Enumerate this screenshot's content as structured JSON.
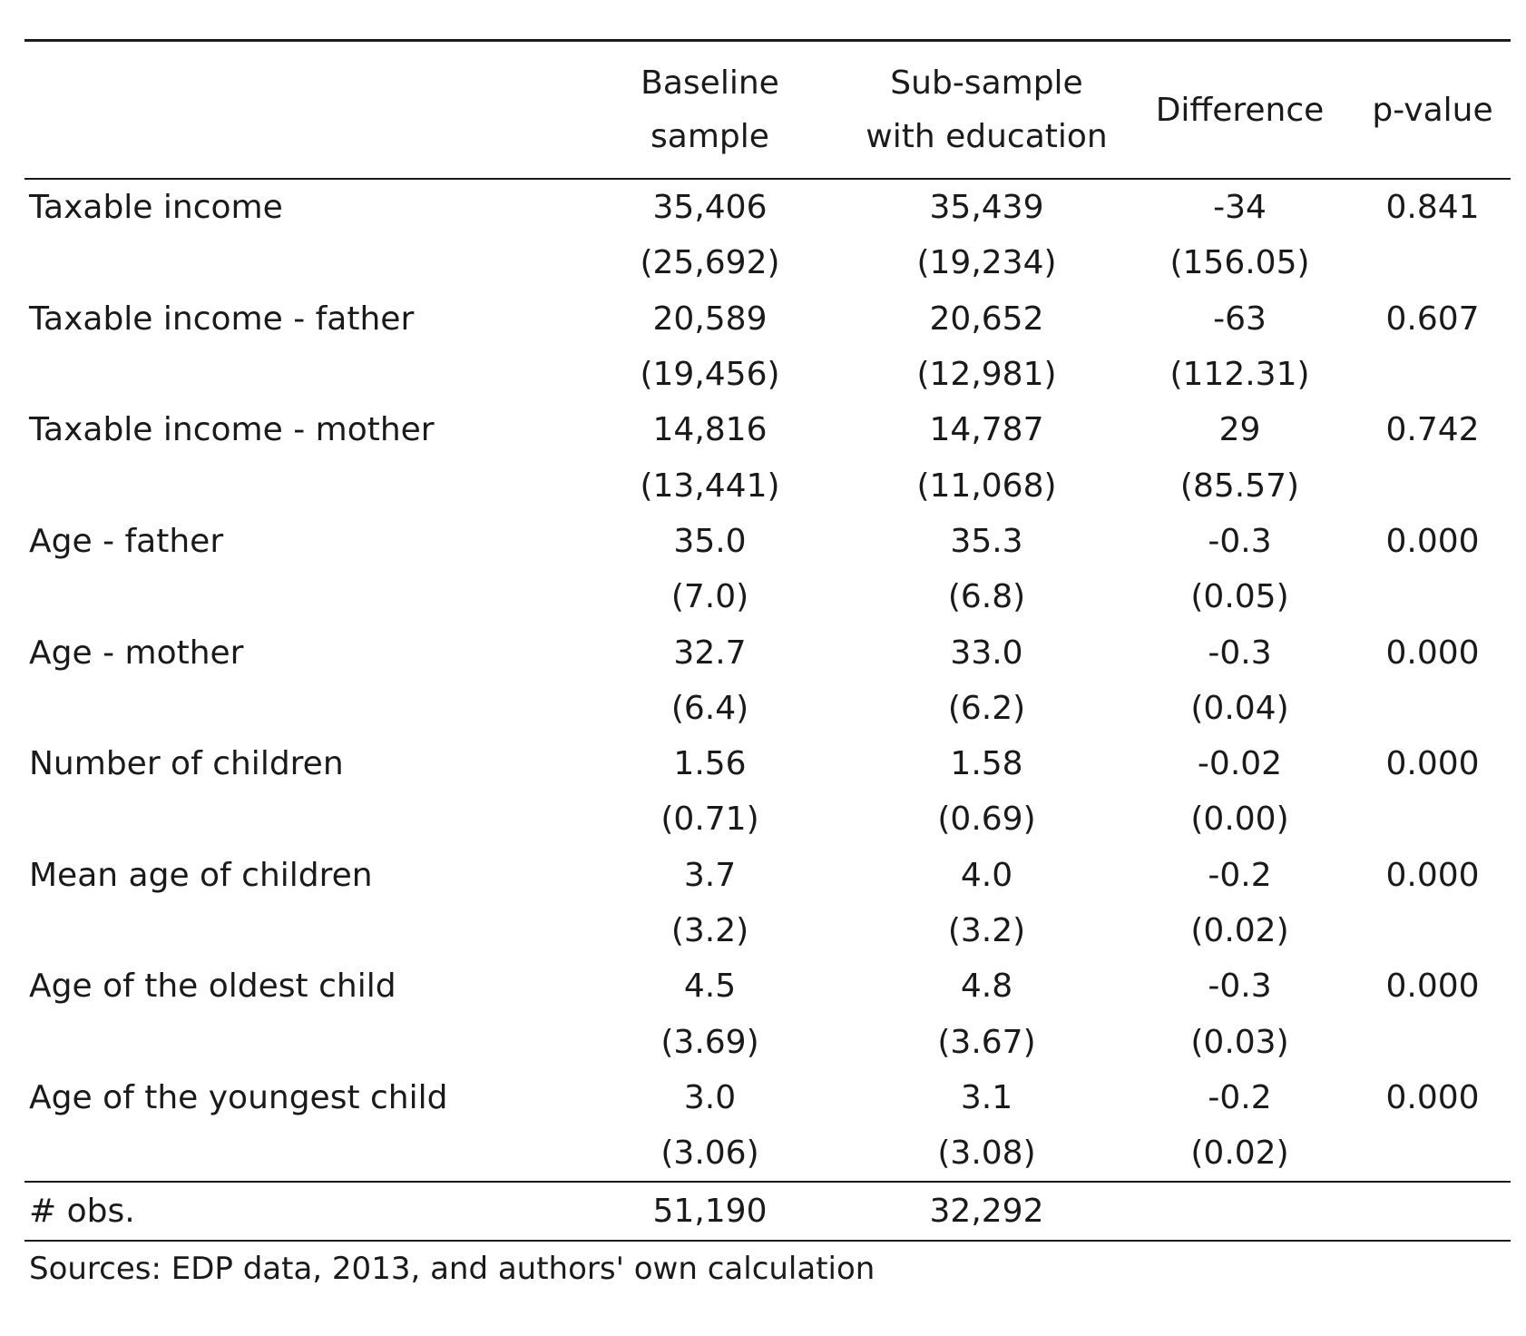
{
  "header": {
    "col_label": "",
    "baseline_line1": "Baseline",
    "baseline_line2": "sample",
    "subsample_line1": "Sub-sample",
    "subsample_line2": "with education",
    "difference": "Difference",
    "pvalue": "p-value"
  },
  "rows": [
    {
      "label": "Taxable income",
      "baseline": "35,406",
      "subsample": "35,439",
      "difference": "-34",
      "pvalue": "0.841",
      "baseline_se": "(25,692)",
      "subsample_se": "(19,234)",
      "difference_se": "(156.05)"
    },
    {
      "label": "Taxable income - father",
      "baseline": "20,589",
      "subsample": "20,652",
      "difference": "-63",
      "pvalue": "0.607",
      "baseline_se": "(19,456)",
      "subsample_se": "(12,981)",
      "difference_se": "(112.31)"
    },
    {
      "label": "Taxable income - mother",
      "baseline": "14,816",
      "subsample": "14,787",
      "difference": "29",
      "pvalue": "0.742",
      "baseline_se": "(13,441)",
      "subsample_se": "(11,068)",
      "difference_se": "(85.57)"
    },
    {
      "label": "Age - father",
      "baseline": "35.0",
      "subsample": "35.3",
      "difference": "-0.3",
      "pvalue": "0.000",
      "baseline_se": "(7.0)",
      "subsample_se": "(6.8)",
      "difference_se": "(0.05)"
    },
    {
      "label": "Age - mother",
      "baseline": "32.7",
      "subsample": "33.0",
      "difference": "-0.3",
      "pvalue": "0.000",
      "baseline_se": "(6.4)",
      "subsample_se": "(6.2)",
      "difference_se": "(0.04)"
    },
    {
      "label": "Number of children",
      "baseline": "1.56",
      "subsample": "1.58",
      "difference": "-0.02",
      "pvalue": "0.000",
      "baseline_se": "(0.71)",
      "subsample_se": "(0.69)",
      "difference_se": "(0.00)"
    },
    {
      "label": "Mean age of children",
      "baseline": "3.7",
      "subsample": "4.0",
      "difference": "-0.2",
      "pvalue": "0.000",
      "baseline_se": "(3.2)",
      "subsample_se": "(3.2)",
      "difference_se": "(0.02)"
    },
    {
      "label": "Age of the oldest child",
      "baseline": "4.5",
      "subsample": "4.8",
      "difference": "-0.3",
      "pvalue": "0.000",
      "baseline_se": "(3.69)",
      "subsample_se": "(3.67)",
      "difference_se": "(0.03)"
    },
    {
      "label": "Age of the youngest child",
      "baseline": "3.0",
      "subsample": "3.1",
      "difference": "-0.2",
      "pvalue": "0.000",
      "baseline_se": "(3.06)",
      "subsample_se": "(3.08)",
      "difference_se": "(0.02)"
    }
  ],
  "obs": {
    "label": "# obs.",
    "baseline": "51,190",
    "subsample": "32,292"
  },
  "source": "Sources: EDP data, 2013, and authors' own calculation"
}
